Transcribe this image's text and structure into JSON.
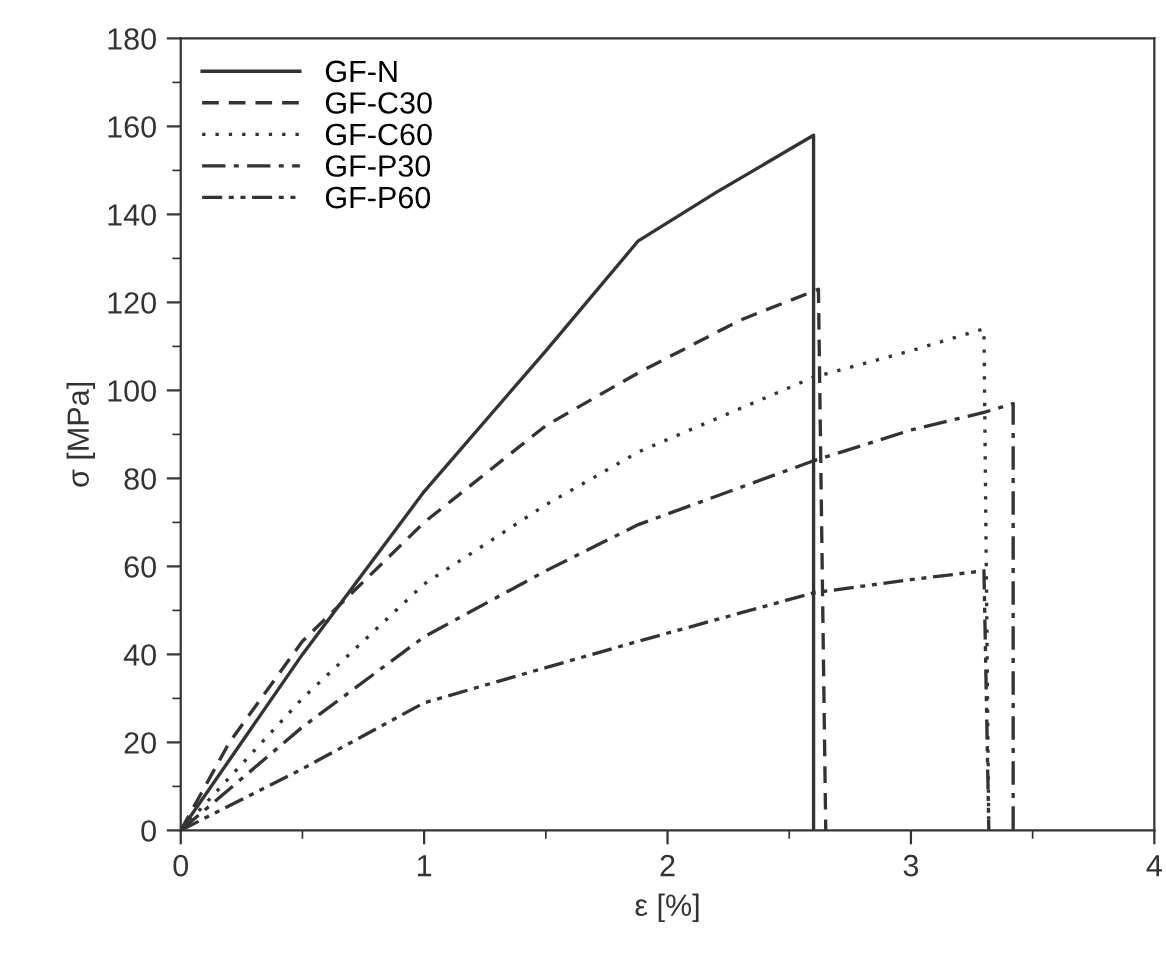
{
  "chart_data": {
    "type": "line",
    "xlabel": "ε [%]",
    "ylabel": "σ [MPa]",
    "xlim": [
      0,
      4
    ],
    "ylim": [
      0,
      180
    ],
    "xticks": [
      0,
      1,
      2,
      3,
      4
    ],
    "yticks": [
      0,
      20,
      40,
      60,
      80,
      100,
      120,
      140,
      160,
      180
    ],
    "grid": false,
    "legend": "top left",
    "marker": "none",
    "series": [
      {
        "name": "GF-N",
        "color": "#333333",
        "line_style": "solid",
        "x": [
          0,
          0.2,
          0.5,
          1,
          1.5,
          1.88,
          2.2,
          2.6,
          2.6
        ],
        "values": [
          0,
          16,
          40,
          77,
          109,
          134,
          145,
          158,
          0
        ]
      },
      {
        "name": "GF-C30",
        "color": "#333333",
        "line_style": "dashed",
        "x": [
          0,
          0.2,
          0.5,
          1,
          1.5,
          1.88,
          2.3,
          2.62,
          2.65
        ],
        "values": [
          0,
          20,
          43,
          70,
          92,
          104,
          116,
          123,
          0
        ]
      },
      {
        "name": "GF-C60",
        "color": "#333333",
        "line_style": "dotted",
        "x": [
          0,
          0.2,
          0.5,
          1,
          1.5,
          1.88,
          2.6,
          3,
          3.3,
          3.32
        ],
        "values": [
          0,
          12,
          30,
          56,
          74,
          86,
          103,
          109,
          114,
          0
        ]
      },
      {
        "name": "GF-P30",
        "color": "#333333",
        "line_style": "dashdot",
        "x": [
          0,
          0.5,
          1,
          1.5,
          1.88,
          2.6,
          3,
          3.3,
          3.42,
          3.42
        ],
        "values": [
          0,
          23.5,
          44,
          59,
          69.5,
          84,
          91,
          95,
          97,
          0
        ]
      },
      {
        "name": "GF-P60",
        "color": "#333333",
        "line_style": "dashdotdot",
        "x": [
          0,
          0.5,
          1,
          1.5,
          1.88,
          2.6,
          3,
          3.3,
          3.32
        ],
        "values": [
          0,
          14,
          29,
          37,
          43,
          54,
          57,
          59,
          0
        ]
      }
    ]
  }
}
